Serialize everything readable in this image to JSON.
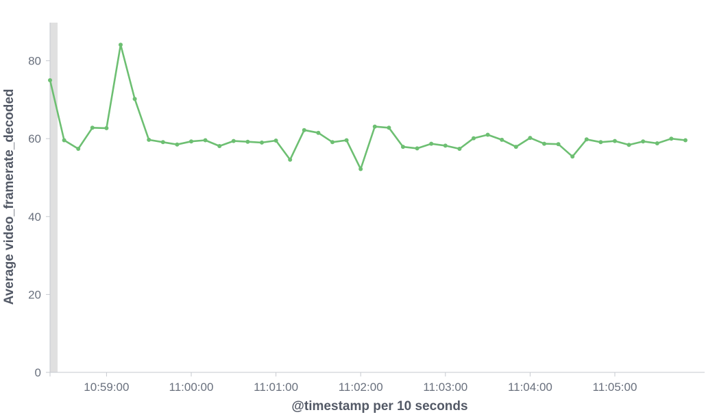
{
  "chart_data": {
    "type": "line",
    "title": "",
    "xlabel": "@timestamp per 10 seconds",
    "ylabel": "Average video_framerate_decoded",
    "x_ticks": [
      "10:59:00",
      "11:00:00",
      "11:01:00",
      "11:02:00",
      "11:03:00",
      "11:04:00",
      "11:05:00"
    ],
    "y_ticks": [
      0,
      20,
      40,
      60,
      80
    ],
    "ylim": [
      0,
      90
    ],
    "grid": false,
    "series": [
      {
        "color": "#6dbf72",
        "x": [
          "10:58:20",
          "10:58:30",
          "10:58:40",
          "10:58:50",
          "10:59:00",
          "10:59:10",
          "10:59:20",
          "10:59:30",
          "10:59:40",
          "10:59:50",
          "11:00:00",
          "11:00:10",
          "11:00:20",
          "11:00:30",
          "11:00:40",
          "11:00:50",
          "11:01:00",
          "11:01:10",
          "11:01:20",
          "11:01:30",
          "11:01:40",
          "11:01:50",
          "11:02:00",
          "11:02:10",
          "11:02:20",
          "11:02:30",
          "11:02:40",
          "11:02:50",
          "11:03:00",
          "11:03:10",
          "11:03:20",
          "11:03:30",
          "11:03:40",
          "11:03:50",
          "11:04:00",
          "11:04:10",
          "11:04:20",
          "11:04:30",
          "11:04:40",
          "11:04:50",
          "11:05:00",
          "11:05:10",
          "11:05:20",
          "11:05:30",
          "11:05:40",
          "11:05:50"
        ],
        "values": [
          75.0,
          59.6,
          57.4,
          62.8,
          62.7,
          84.1,
          70.2,
          59.7,
          59.1,
          58.5,
          59.3,
          59.6,
          58.1,
          59.4,
          59.2,
          59.0,
          59.5,
          54.6,
          62.2,
          61.5,
          59.1,
          59.6,
          52.2,
          63.1,
          62.8,
          57.9,
          57.5,
          58.7,
          58.2,
          57.4,
          60.1,
          61.0,
          59.7,
          57.9,
          60.2,
          58.7,
          58.6,
          55.4,
          59.8,
          59.1,
          59.4,
          58.4,
          59.3,
          58.8,
          60.0,
          59.6
        ]
      }
    ]
  }
}
